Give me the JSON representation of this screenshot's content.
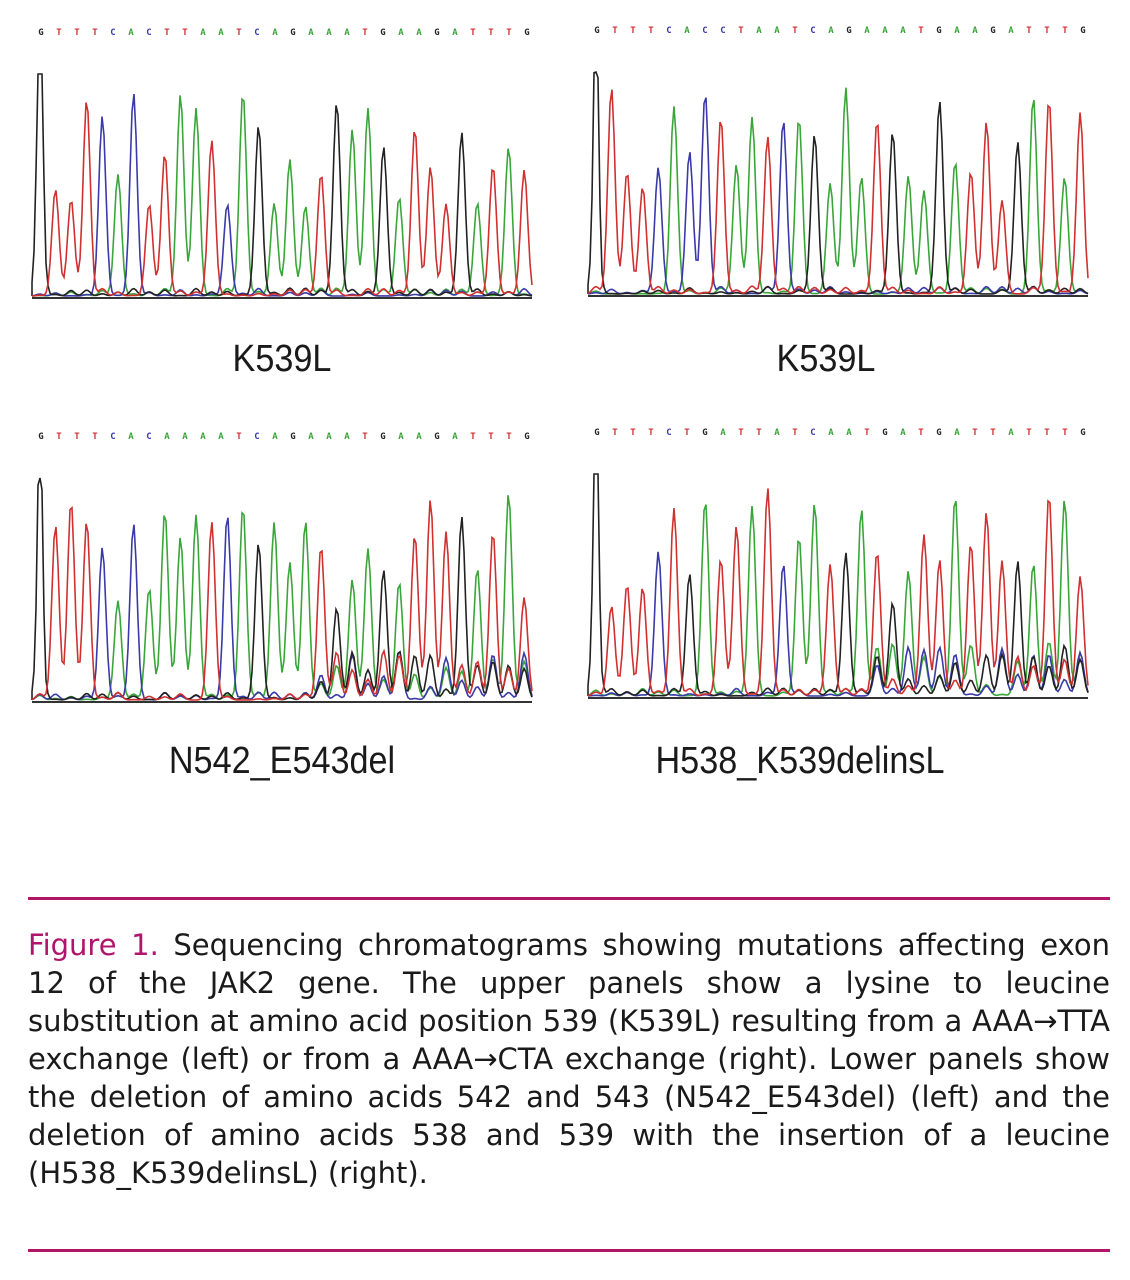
{
  "panels": [
    {
      "label": "K539L",
      "sequence": "GTTTCACTTAATCAGAAATGAAGATTTGATAT"
    },
    {
      "label": "K539L",
      "sequence": "GTTTCACCTAATCAGAAATGAAGATTTGATAT"
    },
    {
      "label": "N542_E543del",
      "sequence": "GTTTCACAAAATCAGAAATGAAGATTTGATAT"
    },
    {
      "label": "H538_K539delinsL",
      "sequence": "GTTTCTGATTATCAATGATGATTATTTGATAT"
    }
  ],
  "caption": {
    "figure_label": "Figure 1.",
    "text": " Sequencing chromatograms showing mutations affecting exon 12 of the JAK2 gene. The upper panels show a lysine to leucine substitution at amino acid position 539 (K539L) resulting from a AAA→TTA exchange (left) or from a AAA→CTA exchange (right). Lower panels show the deletion of amino acids 542 and 543 (N542_E543del) (left) and the deletion of amino acids 538 and 539 with the insertion of a leucine (H538_K539delinsL) (right)."
  },
  "colors": {
    "A": "#3aa63a",
    "C": "#3a3aa8",
    "G": "#222222",
    "T": "#d03030",
    "accent": "#b0156c"
  }
}
